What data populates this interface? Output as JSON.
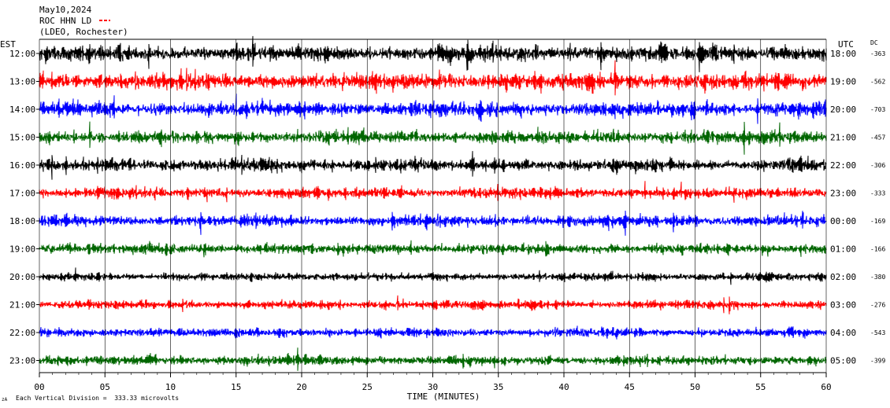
{
  "header": {
    "date": "May10,2024",
    "station": "ROC HHN LD",
    "network": "(LDEO, Rochester)",
    "left_zone": "EST",
    "right_zone": "UTC",
    "dc_label": "DC"
  },
  "footer": {
    "scale_note": "Each Vertical Division =  333.33 microvolts",
    "corner_mark": "zA"
  },
  "chart_data": {
    "type": "line",
    "title": "May10,2024",
    "xlabel": "TIME (MINUTES)",
    "ylabel": "",
    "xlim": [
      0,
      60
    ],
    "x_ticks": [
      "00",
      "05",
      "10",
      "15",
      "20",
      "25",
      "30",
      "35",
      "40",
      "45",
      "50",
      "55",
      "60"
    ],
    "grid": "vertical lines every 5 minutes",
    "trace_colors": [
      "#000000",
      "#ff0000",
      "#0000ff",
      "#006600"
    ],
    "rows": [
      {
        "est": "12:00",
        "utc": "18:00",
        "dc": "-363",
        "amplitude": 0.9
      },
      {
        "est": "13:00",
        "utc": "19:00",
        "dc": "-562",
        "amplitude": 0.95
      },
      {
        "est": "14:00",
        "utc": "20:00",
        "dc": "-703",
        "amplitude": 0.85
      },
      {
        "est": "15:00",
        "utc": "21:00",
        "dc": "-457",
        "amplitude": 0.75
      },
      {
        "est": "16:00",
        "utc": "22:00",
        "dc": "-306",
        "amplitude": 0.7
      },
      {
        "est": "17:00",
        "utc": "23:00",
        "dc": "-333",
        "amplitude": 0.65
      },
      {
        "est": "18:00",
        "utc": "00:00",
        "dc": "-169",
        "amplitude": 0.65
      },
      {
        "est": "19:00",
        "utc": "01:00",
        "dc": "-166",
        "amplitude": 0.6
      },
      {
        "est": "20:00",
        "utc": "02:00",
        "dc": "-380",
        "amplitude": 0.45
      },
      {
        "est": "21:00",
        "utc": "03:00",
        "dc": "-276",
        "amplitude": 0.5
      },
      {
        "est": "22:00",
        "utc": "04:00",
        "dc": "-543",
        "amplitude": 0.5
      },
      {
        "est": "23:00",
        "utc": "05:00",
        "dc": "-399",
        "amplitude": 0.55
      }
    ]
  }
}
